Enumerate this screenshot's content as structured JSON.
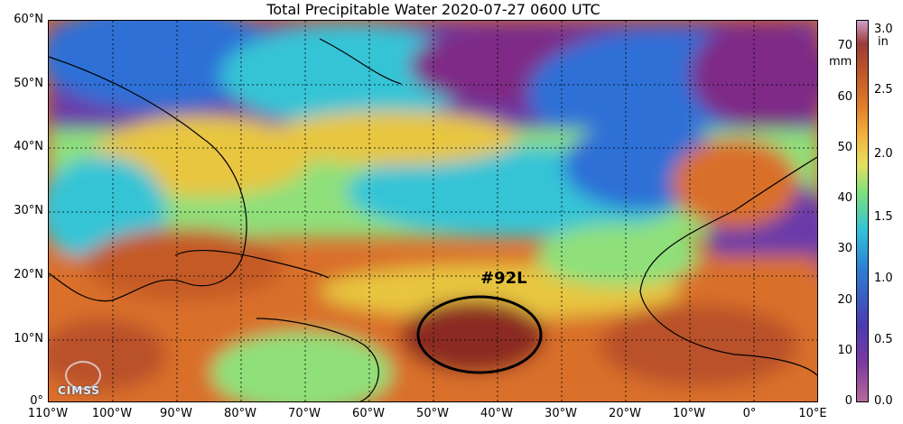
{
  "title": "Total Precipitable Water  2020-07-27 0600 UTC",
  "lat_labels": [
    "60°N",
    "50°N",
    "40°N",
    "30°N",
    "20°N",
    "10°N",
    "0°"
  ],
  "lon_labels": [
    "110°W",
    "100°W",
    "90°W",
    "80°W",
    "70°W",
    "60°W",
    "50°W",
    "40°W",
    "30°W",
    "20°W",
    "10°W",
    "0°",
    "10°E"
  ],
  "colorbar": {
    "left_unit": "mm",
    "right_unit": "in",
    "mm_ticks": [
      "70",
      "60",
      "50",
      "40",
      "30",
      "20",
      "10",
      "0"
    ],
    "in_ticks": [
      "3.0",
      "2.5",
      "2.0",
      "1.5",
      "1.0",
      "0.5",
      "0.0"
    ]
  },
  "annotation": {
    "label": "#92L"
  },
  "logo": {
    "text": "CIMSS"
  },
  "colors": {
    "very_moist": "#8b2a24",
    "moist": "#d9702b",
    "medium": "#e8c640",
    "mid": "#8fe07a",
    "lowmid": "#35c4d6",
    "dry": "#2e6fd6",
    "very_dry": "#6a3aa8",
    "driest": "#7e2c86"
  }
}
